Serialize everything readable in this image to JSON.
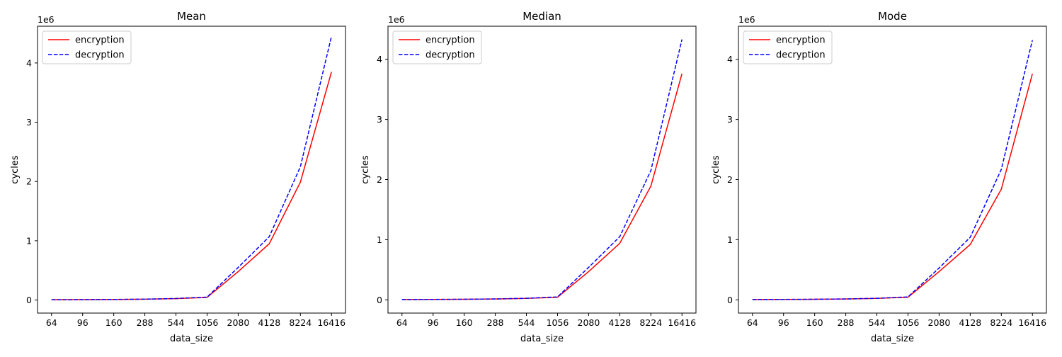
{
  "chart_data": [
    {
      "type": "line",
      "title": "Mean",
      "xlabel": "data_size",
      "ylabel": "cycles",
      "multiplier": "1e6",
      "categories": [
        "64",
        "96",
        "160",
        "288",
        "544",
        "1056",
        "2080",
        "4128",
        "8224",
        "16416"
      ],
      "yticks": [
        "0",
        "1",
        "2",
        "3",
        "4"
      ],
      "ylim": [
        -0.22,
        4.62
      ],
      "legend_position": "upper left",
      "series": [
        {
          "name": "encryption",
          "color": "#ff0000",
          "style": "solid",
          "values": [
            0.005,
            0.007,
            0.009,
            0.014,
            0.024,
            0.045,
            0.48,
            0.95,
            1.99,
            3.85
          ]
        },
        {
          "name": "decryption",
          "color": "#0000ff",
          "style": "dashed",
          "values": [
            0.005,
            0.007,
            0.01,
            0.015,
            0.026,
            0.05,
            0.55,
            1.07,
            2.25,
            4.45
          ]
        }
      ]
    },
    {
      "type": "line",
      "title": "Median",
      "xlabel": "data_size",
      "ylabel": "cycles",
      "multiplier": "1e6",
      "categories": [
        "64",
        "96",
        "160",
        "288",
        "544",
        "1056",
        "2080",
        "4128",
        "8224",
        "16416"
      ],
      "yticks": [
        "0",
        "1",
        "2",
        "3",
        "4"
      ],
      "ylim": [
        -0.22,
        4.55
      ],
      "legend_position": "upper left",
      "series": [
        {
          "name": "encryption",
          "color": "#ff0000",
          "style": "solid",
          "values": [
            0.005,
            0.007,
            0.009,
            0.014,
            0.024,
            0.044,
            0.47,
            0.94,
            1.89,
            3.76
          ]
        },
        {
          "name": "decryption",
          "color": "#0000ff",
          "style": "dashed",
          "values": [
            0.005,
            0.007,
            0.01,
            0.015,
            0.026,
            0.049,
            0.54,
            1.05,
            2.15,
            4.33
          ]
        }
      ]
    },
    {
      "type": "line",
      "title": "Mode",
      "xlabel": "data_size",
      "ylabel": "cycles",
      "multiplier": "1e6",
      "categories": [
        "64",
        "96",
        "160",
        "288",
        "544",
        "1056",
        "2080",
        "4128",
        "8224",
        "16416"
      ],
      "yticks": [
        "0",
        "1",
        "2",
        "3",
        "4"
      ],
      "ylim": [
        -0.22,
        4.55
      ],
      "legend_position": "upper left",
      "series": [
        {
          "name": "encryption",
          "color": "#ff0000",
          "style": "solid",
          "values": [
            0.005,
            0.007,
            0.009,
            0.014,
            0.024,
            0.044,
            0.47,
            0.92,
            1.84,
            3.76
          ]
        },
        {
          "name": "decryption",
          "color": "#0000ff",
          "style": "dashed",
          "values": [
            0.005,
            0.007,
            0.01,
            0.015,
            0.026,
            0.049,
            0.53,
            1.04,
            2.17,
            4.32
          ]
        }
      ]
    }
  ]
}
